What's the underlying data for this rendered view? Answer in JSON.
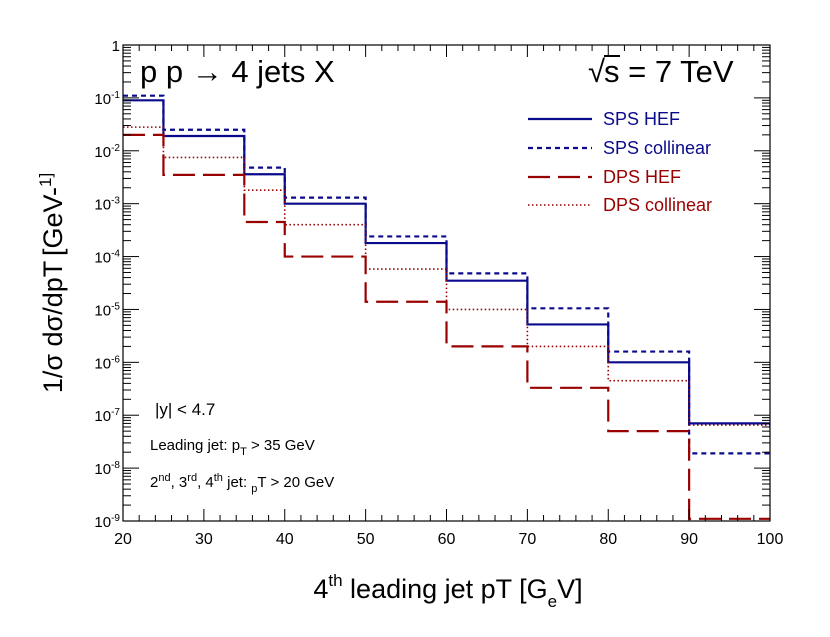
{
  "chart_data": {
    "type": "line",
    "title": "p p → 4 jets X",
    "energy_label": "√s = 7 TeV",
    "energy_text": "s = 7 TeV",
    "energy_symbol": "√",
    "xlabel": "4th leading jet pT   [GeV]",
    "ylabel": "1/σ  dσ/dpT   [GeV-1]",
    "xlim": [
      20,
      100
    ],
    "ylim": [
      1e-09,
      1
    ],
    "yscale": "log",
    "bin_edges": [
      20,
      25,
      35,
      40,
      50,
      60,
      70,
      80,
      90,
      100
    ],
    "x_ticks": [
      20,
      30,
      40,
      50,
      60,
      70,
      80,
      90,
      100
    ],
    "x_tick_labels": [
      "20",
      "30",
      "40",
      "50",
      "60",
      "70",
      "80",
      "90",
      "100"
    ],
    "y_tick_labels": [
      {
        "exp": 0,
        "text": "1"
      },
      {
        "exp": -1,
        "text": "10-1"
      },
      {
        "exp": -2,
        "text": "10-2"
      },
      {
        "exp": -3,
        "text": "10-3"
      },
      {
        "exp": -4,
        "text": "10-4"
      },
      {
        "exp": -5,
        "text": "10-5"
      },
      {
        "exp": -6,
        "text": "10-6"
      },
      {
        "exp": -7,
        "text": "10-7"
      },
      {
        "exp": -8,
        "text": "10-8"
      },
      {
        "exp": -9,
        "text": "10-9"
      }
    ],
    "series": [
      {
        "name": "SPS HEF",
        "color": "#0a0a8c",
        "style": "solid",
        "values": [
          0.09,
          0.019,
          0.0036,
          0.001,
          0.00018,
          3.5e-05,
          5.2e-06,
          1e-06,
          7e-08
        ]
      },
      {
        "name": "SPS collinear",
        "color": "#0a0a8c",
        "style": "dashed",
        "values": [
          0.11,
          0.025,
          0.0048,
          0.0013,
          0.00024,
          4.8e-05,
          1.05e-05,
          1.6e-06,
          1.9e-08
        ]
      },
      {
        "name": "DPS HEF",
        "color": "#990000",
        "style": "longdash",
        "values": [
          0.02,
          0.0035,
          0.00045,
          0.0001,
          1.4e-05,
          2e-06,
          3.3e-07,
          5e-08,
          1.1e-09
        ]
      },
      {
        "name": "DPS collinear",
        "color": "#990000",
        "style": "dotted",
        "values": [
          0.028,
          0.0075,
          0.0018,
          0.0004,
          5.8e-05,
          1e-05,
          2e-06,
          4.5e-07,
          6.5e-08
        ]
      }
    ],
    "annotations": [
      "|y| < 4.7",
      "Leading jet: pT > 35 GeV",
      "2nd, 3rd, 4th jet: pT > 20 GeV"
    ],
    "legend_position": "top-right"
  }
}
